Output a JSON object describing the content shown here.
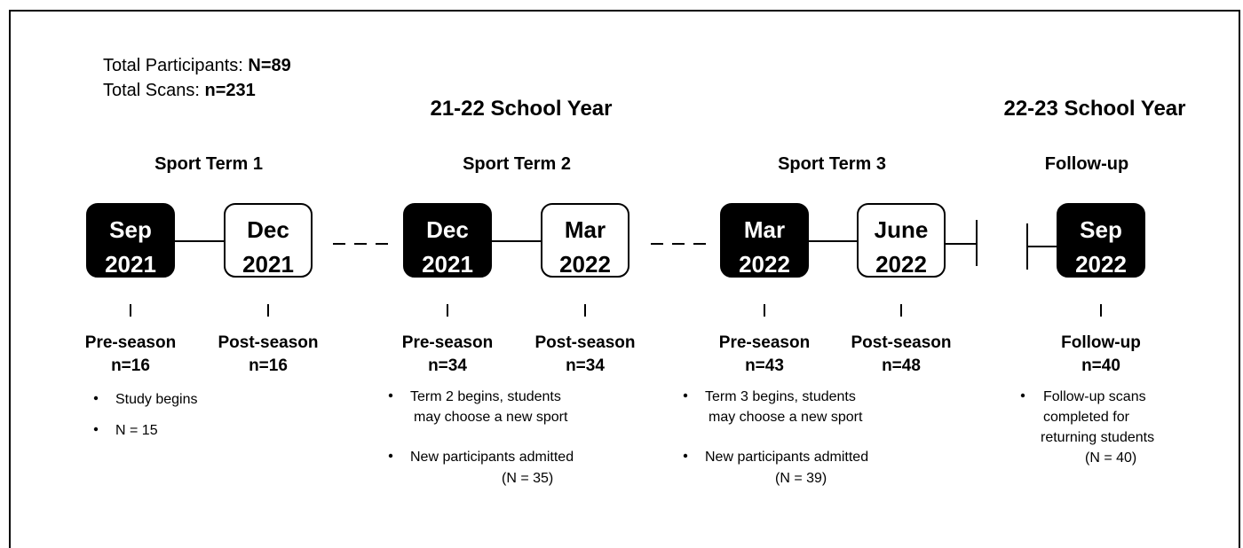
{
  "summary": [
    {
      "label": "Total Participants: ",
      "value": "N=89"
    },
    {
      "label": "Total Scans: ",
      "value": "n=231"
    }
  ],
  "school_years": [
    "21-22 School Year",
    "22-23 School Year"
  ],
  "terms": [
    {
      "title": "Sport Term 1",
      "scans": [
        {
          "month": "Sep",
          "year": "2021",
          "phase": "Pre-season",
          "n": "n=16"
        },
        {
          "month": "Dec",
          "year": "2021",
          "phase": "Post-season",
          "n": "n=16"
        }
      ],
      "notes": [
        [
          "Study begins"
        ],
        [
          "N = 15"
        ]
      ]
    },
    {
      "title": "Sport Term 2",
      "scans": [
        {
          "month": "Dec",
          "year": "2021",
          "phase": "Pre-season",
          "n": "n=34"
        },
        {
          "month": "Mar",
          "year": "2022",
          "phase": "Post-season",
          "n": "n=34"
        }
      ],
      "notes": [
        [
          "Term 2 begins, students",
          "may choose a new sport"
        ],
        [
          "New participants admitted",
          "(N = 35)"
        ]
      ]
    },
    {
      "title": "Sport Term 3",
      "scans": [
        {
          "month": "Mar",
          "year": "2022",
          "phase": "Pre-season",
          "n": "n=43"
        },
        {
          "month": "June",
          "year": "2022",
          "phase": "Post-season",
          "n": "n=48"
        }
      ],
      "notes": [
        [
          "Term 3 begins, students",
          "may choose a new sport"
        ],
        [
          "New participants admitted",
          "(N = 39)"
        ]
      ]
    },
    {
      "title": "Follow-up",
      "scans": [
        {
          "month": "Sep",
          "year": "2022",
          "phase": "Follow-up",
          "n": "n=40"
        }
      ],
      "notes": [
        [
          "Follow-up scans",
          "completed for",
          "returning students",
          "(N = 40)"
        ]
      ]
    }
  ]
}
